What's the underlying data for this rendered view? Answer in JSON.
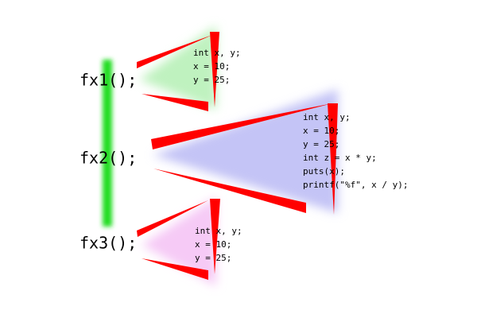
{
  "calls": [
    {
      "label": "fx1();",
      "code": [
        "int x, y;",
        "x = 10;",
        "y = 25;"
      ]
    },
    {
      "label": "fx2();",
      "code": [
        "int x, y;",
        "x = 10;",
        "y = 25;",
        "int z = x * y;",
        "puts(x);",
        "printf(\"%f\", x / y);"
      ]
    },
    {
      "label": "fx3();",
      "code": [
        "int x, y;",
        "x = 10;",
        "y = 25;"
      ]
    }
  ]
}
